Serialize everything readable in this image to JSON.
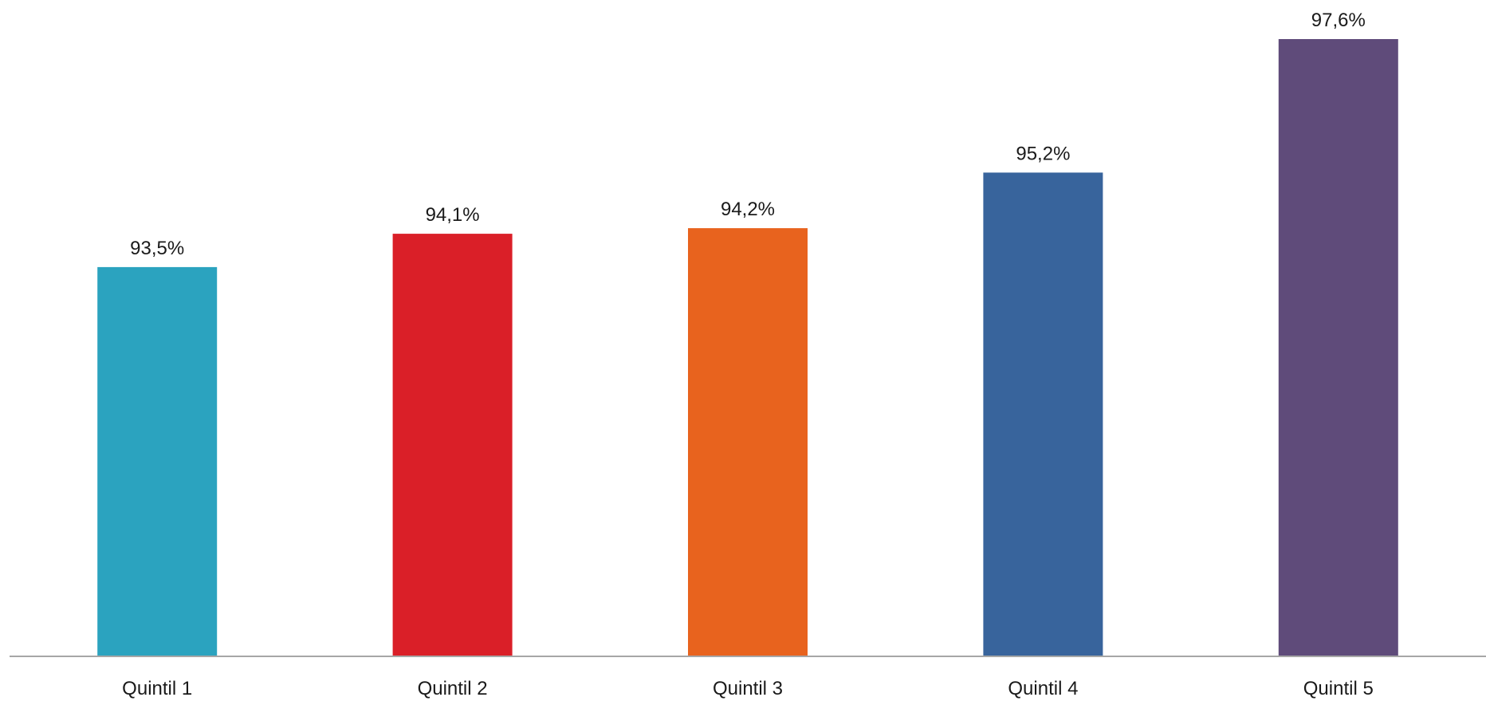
{
  "chart_data": {
    "type": "bar",
    "title": "",
    "xlabel": "",
    "ylabel": "",
    "categories": [
      "Quintil 1",
      "Quintil 2",
      "Quintil 3",
      "Quintil 4",
      "Quintil 5"
    ],
    "values": [
      93.5,
      94.1,
      94.2,
      95.2,
      97.6
    ],
    "value_labels": [
      "93,5%",
      "94,1%",
      "94,2%",
      "95,2%",
      "97,6%"
    ],
    "colors": [
      "#2ba3bf",
      "#da1f28",
      "#e8631e",
      "#38649c",
      "#5f4b7a"
    ],
    "baseline_color": "#a6a6a6",
    "ylim": [
      86.5,
      97.6
    ],
    "grid": false,
    "legend": "none",
    "y_axis_visible": false
  }
}
